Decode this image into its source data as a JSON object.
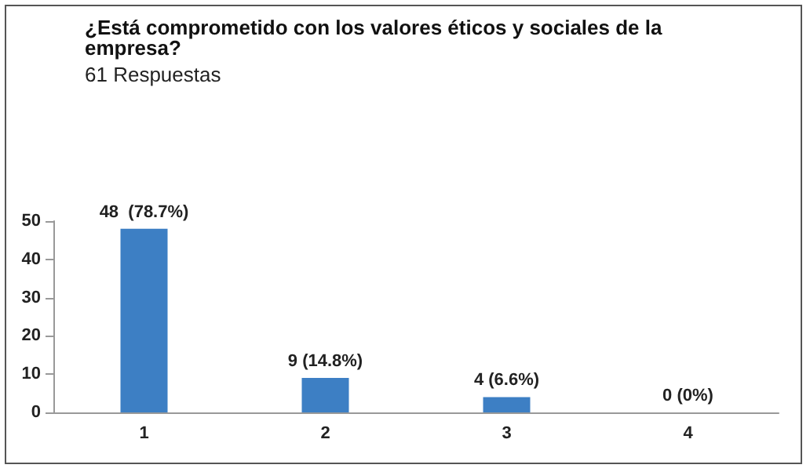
{
  "chart_data": {
    "type": "bar",
    "title": "¿Está comprometido con los valores éticos y sociales de la empresa?",
    "subtitle": "61 Respuestas",
    "categories": [
      "1",
      "2",
      "3",
      "4"
    ],
    "values": [
      48,
      9,
      4,
      0
    ],
    "value_labels": [
      "48  (78.7%)",
      "9 (14.8%)",
      "4 (6.6%)",
      "0 (0%)"
    ],
    "color": "#3d7fc4",
    "ylim": [
      0,
      50
    ],
    "yticks": [
      0,
      10,
      20,
      30,
      40,
      50
    ],
    "grid": false
  }
}
